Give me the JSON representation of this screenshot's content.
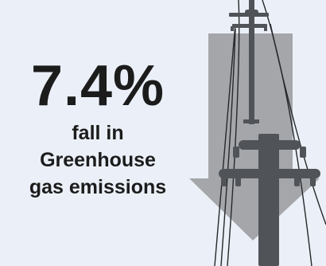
{
  "stat": {
    "value": "7.4%",
    "label_lines": [
      "fall in",
      "Greenhouse",
      "gas emissions"
    ]
  },
  "colors": {
    "background": "#ebf0f8",
    "text": "#1c1c1c",
    "arrow": "#a4a6aa",
    "pole": "#505458",
    "wire": "#26282a"
  },
  "icons": [
    "down-arrow-icon",
    "utility-pole-icon"
  ]
}
